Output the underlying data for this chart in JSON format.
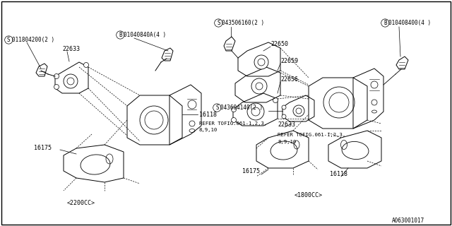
{
  "bg": "#ffffff",
  "lc": "#000000",
  "tc": "#000000",
  "title_id": "A063001017",
  "left_label": "<2200CC>",
  "right_label": "<1800CC>",
  "left_parts": {
    "screw": "S011804200(2 )",
    "bolt": "B01040840A(4 )",
    "p22633": "22633",
    "p16118": "16118",
    "p16175": "16175"
  },
  "right_parts": {
    "screw_top": "S043506160(2 )",
    "bolt": "B010408400(4 )",
    "screw_mid": "S043604140(2 )",
    "p22650": "22650",
    "p22659": "22659",
    "p22656": "22656",
    "p22633": "22633",
    "p16175": "16175",
    "p16118": "16118"
  },
  "refer": "REFER TOFIG.061-1,2,3,\n8,9,10"
}
